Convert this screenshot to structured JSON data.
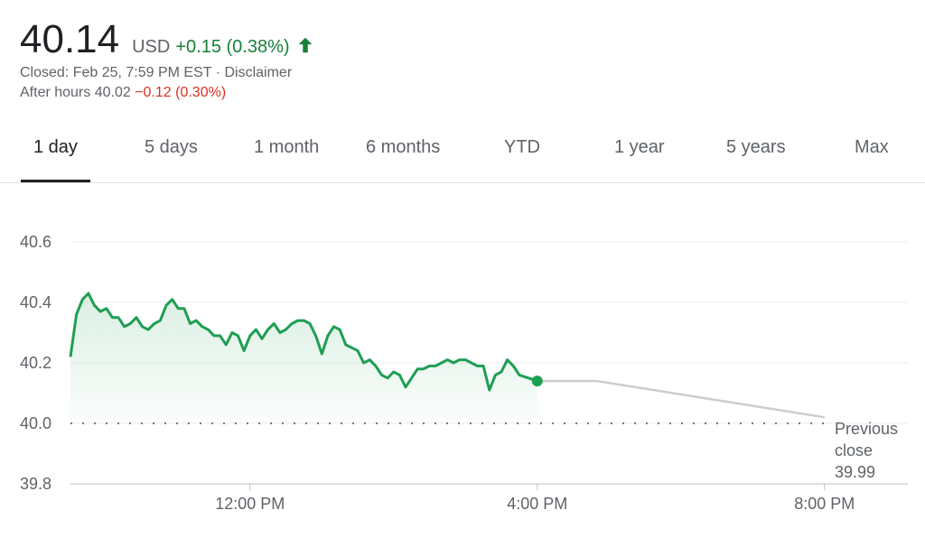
{
  "quote": {
    "price": "40.14",
    "currency": "USD",
    "change": "+0.15 (0.38%)",
    "closed_prefix": "Closed: Feb 25, 7:59 PM EST · ",
    "disclaimer": "Disclaimer",
    "after_hours_prefix": "After hours 40.02 ",
    "after_hours_change": "−0.12 (0.30%)"
  },
  "tabs": [
    "1 day",
    "5 days",
    "1 month",
    "6 months",
    "YTD",
    "1 year",
    "5 years",
    "Max"
  ],
  "colors": {
    "up": "#188038",
    "down": "#d93025",
    "line": "#1e9e53",
    "extended": "#cccccc"
  },
  "chart_data": {
    "type": "line",
    "ylim": [
      39.8,
      40.6
    ],
    "y_ticks": [
      "40.6",
      "40.4",
      "40.2",
      "40.0",
      "39.8"
    ],
    "x_ticks": [
      "12:00 PM",
      "4:00 PM",
      "8:00 PM"
    ],
    "previous_close_label_1": "Previous",
    "previous_close_label_2": "close",
    "previous_close_value": "39.99",
    "previous_close": 39.99,
    "series": [
      {
        "values": [
          [
            "9:30",
            40.22
          ],
          [
            "9:35",
            40.36
          ],
          [
            "9:40",
            40.41
          ],
          [
            "9:45",
            40.43
          ],
          [
            "9:50",
            40.39
          ],
          [
            "9:55",
            40.37
          ],
          [
            "10:00",
            40.38
          ],
          [
            "10:05",
            40.35
          ],
          [
            "10:10",
            40.35
          ],
          [
            "10:15",
            40.32
          ],
          [
            "10:20",
            40.33
          ],
          [
            "10:25",
            40.35
          ],
          [
            "10:30",
            40.32
          ],
          [
            "10:35",
            40.31
          ],
          [
            "10:40",
            40.33
          ],
          [
            "10:45",
            40.34
          ],
          [
            "10:50",
            40.39
          ],
          [
            "10:55",
            40.41
          ],
          [
            "11:00",
            40.38
          ],
          [
            "11:05",
            40.38
          ],
          [
            "11:10",
            40.33
          ],
          [
            "11:15",
            40.34
          ],
          [
            "11:20",
            40.32
          ],
          [
            "11:25",
            40.31
          ],
          [
            "11:30",
            40.29
          ],
          [
            "11:35",
            40.29
          ],
          [
            "11:40",
            40.26
          ],
          [
            "11:45",
            40.3
          ],
          [
            "11:50",
            40.29
          ],
          [
            "11:55",
            40.24
          ],
          [
            "12:00",
            40.29
          ],
          [
            "12:05",
            40.31
          ],
          [
            "12:10",
            40.28
          ],
          [
            "12:15",
            40.31
          ],
          [
            "12:20",
            40.33
          ],
          [
            "12:25",
            40.3
          ],
          [
            "12:30",
            40.31
          ],
          [
            "12:35",
            40.33
          ],
          [
            "12:40",
            40.34
          ],
          [
            "12:45",
            40.34
          ],
          [
            "12:50",
            40.33
          ],
          [
            "12:55",
            40.29
          ],
          [
            "13:00",
            40.23
          ],
          [
            "13:05",
            40.29
          ],
          [
            "13:10",
            40.32
          ],
          [
            "13:15",
            40.31
          ],
          [
            "13:20",
            40.26
          ],
          [
            "13:25",
            40.25
          ],
          [
            "13:30",
            40.24
          ],
          [
            "13:35",
            40.2
          ],
          [
            "13:40",
            40.21
          ],
          [
            "13:45",
            40.19
          ],
          [
            "13:50",
            40.16
          ],
          [
            "13:55",
            40.15
          ],
          [
            "14:00",
            40.17
          ],
          [
            "14:05",
            40.16
          ],
          [
            "14:10",
            40.12
          ],
          [
            "14:15",
            40.15
          ],
          [
            "14:20",
            40.18
          ],
          [
            "14:25",
            40.18
          ],
          [
            "14:30",
            40.19
          ],
          [
            "14:35",
            40.19
          ],
          [
            "14:40",
            40.2
          ],
          [
            "14:45",
            40.21
          ],
          [
            "14:50",
            40.2
          ],
          [
            "14:55",
            40.21
          ],
          [
            "15:00",
            40.21
          ],
          [
            "15:05",
            40.2
          ],
          [
            "15:10",
            40.19
          ],
          [
            "15:15",
            40.19
          ],
          [
            "15:20",
            40.11
          ],
          [
            "15:25",
            40.16
          ],
          [
            "15:30",
            40.17
          ],
          [
            "15:35",
            40.21
          ],
          [
            "15:40",
            40.19
          ],
          [
            "15:45",
            40.16
          ],
          [
            "16:00",
            40.14
          ]
        ]
      },
      {
        "values": [
          [
            "16:00",
            40.14
          ],
          [
            "16:50",
            40.14
          ],
          [
            "20:00",
            40.02
          ]
        ]
      }
    ]
  }
}
